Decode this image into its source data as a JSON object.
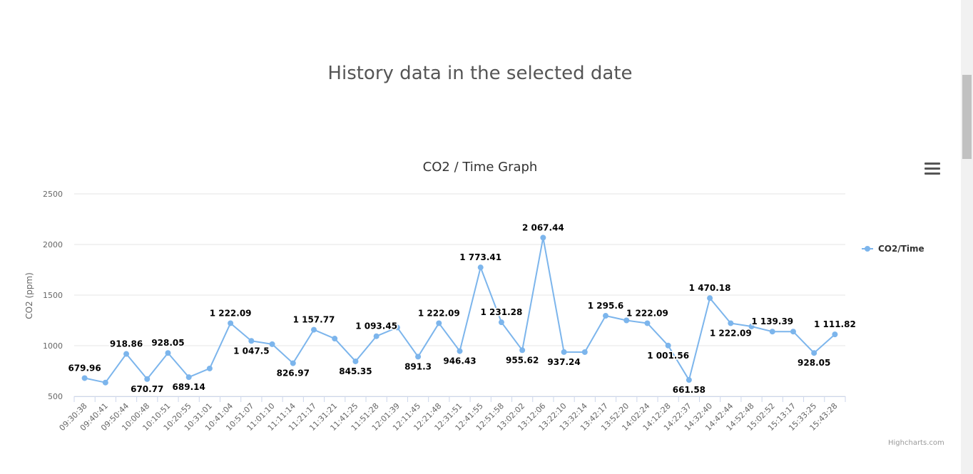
{
  "page": {
    "title": "History data in the selected date"
  },
  "menu": {
    "icon": "hamburger-menu-icon"
  },
  "credit": "Highcharts.com",
  "chart_data": {
    "type": "line",
    "title": "CO2 / Time Graph",
    "xlabel": "",
    "ylabel": "CO2 (ppm)",
    "ylim": [
      500,
      2500
    ],
    "yticks": [
      500,
      1000,
      1500,
      2000,
      2500
    ],
    "grid": true,
    "legend_position": "right",
    "color": "#7cb5ec",
    "categories": [
      "09:30:38",
      "09:40:41",
      "09:50:44",
      "10:00:48",
      "10:10:51",
      "10:20:55",
      "10:31:01",
      "10:41:04",
      "10:51:07",
      "11:01:10",
      "11:11:14",
      "11:21:17",
      "11:31:21",
      "11:41:25",
      "11:51:28",
      "12:01:39",
      "12:11:45",
      "12:21:48",
      "12:31:51",
      "12:41:55",
      "12:51:58",
      "13:02:02",
      "13:12:06",
      "13:22:10",
      "13:32:14",
      "13:42:17",
      "13:52:20",
      "14:02:24",
      "14:12:28",
      "14:22:37",
      "14:32:40",
      "14:42:44",
      "14:52:48",
      "15:02:52",
      "15:13:17",
      "15:33:25",
      "15:43:28"
    ],
    "series": [
      {
        "name": "CO2/Time",
        "values": [
          679.96,
          636,
          918.86,
          670.77,
          928.05,
          689.14,
          775,
          1222.09,
          1047.5,
          1015,
          826.97,
          1157.77,
          1070,
          845.35,
          1093.45,
          1180,
          891.3,
          1222.09,
          946.43,
          1773.41,
          1231.28,
          955.62,
          2067.44,
          937.24,
          937,
          1295.6,
          1250,
          1222.09,
          1001.56,
          661.58,
          1470.18,
          1222.09,
          1190,
          1139.39,
          1139.39,
          928.05,
          1111.82
        ],
        "labels": [
          "679.96",
          "",
          "918.86",
          "670.77",
          "928.05",
          "689.14",
          "",
          "1 222.09",
          "1 047.5",
          "",
          "826.97",
          "1 157.77",
          "",
          "845.35",
          "1 093.45",
          "",
          "891.3",
          "1 222.09",
          "946.43",
          "1 773.41",
          "1 231.28",
          "955.62",
          "2 067.44",
          "937.24",
          "",
          "1 295.6",
          "",
          "1 222.09",
          "1 001.56",
          "661.58",
          "1 470.18",
          "1 222.09",
          "",
          "1 139.39",
          "",
          "928.05",
          "1 111.82"
        ]
      }
    ]
  }
}
